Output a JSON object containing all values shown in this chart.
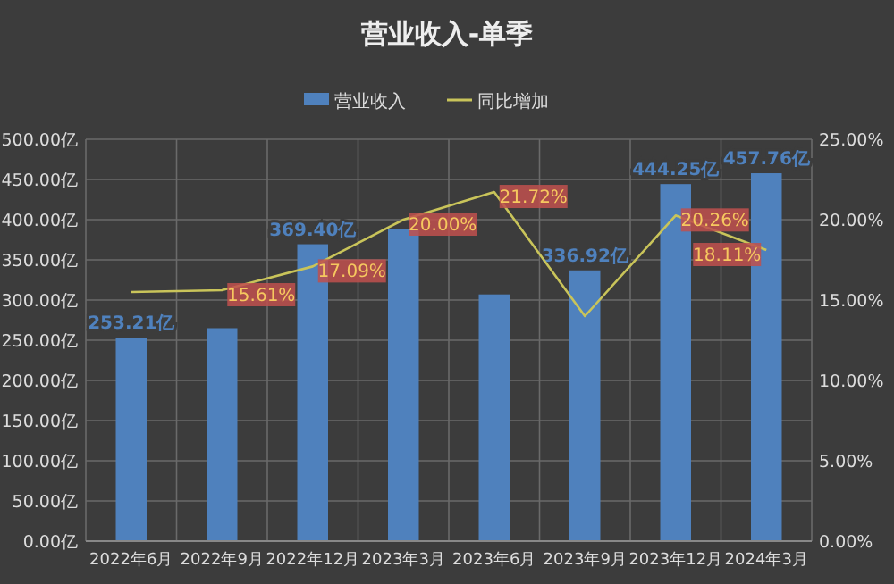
{
  "chart_data": {
    "type": "bar",
    "title": "营业收入-单季",
    "categories": [
      "2022年6月",
      "2022年9月",
      "2022年12月",
      "2023年3月",
      "2023年6月",
      "2023年9月",
      "2023年12月",
      "2024年3月"
    ],
    "series": [
      {
        "name": "营业收入",
        "color": "#4f81bd",
        "values": [
          253.21,
          265,
          369.4,
          388,
          307,
          336.92,
          444.25,
          457.76
        ],
        "value_labels": [
          "253.21亿",
          null,
          "369.40亿",
          null,
          null,
          "336.92亿",
          "444.25亿",
          "457.76亿"
        ]
      },
      {
        "name": "同比增加",
        "type": "line",
        "axis": "y2",
        "color": "#c9c45a",
        "values": [
          15.5,
          15.61,
          17.09,
          20,
          21.72,
          14,
          20.26,
          18.11
        ],
        "value_labels": [
          null,
          "15.61%",
          "17.09%",
          "20.00%",
          "21.72%",
          null,
          "20.26%",
          "18.11%"
        ]
      }
    ],
    "ylim": [
      0,
      500
    ],
    "yticks": [
      {
        "value": 0,
        "label": "0.00亿"
      },
      {
        "value": 50,
        "label": "50.00亿"
      },
      {
        "value": 100,
        "label": "100.00亿"
      },
      {
        "value": 150,
        "label": "150.00亿"
      },
      {
        "value": 200,
        "label": "200.00亿"
      },
      {
        "value": 250,
        "label": "250.00亿"
      },
      {
        "value": 300,
        "label": "300.00亿"
      },
      {
        "value": 350,
        "label": "350.00亿"
      },
      {
        "value": 400,
        "label": "400.00亿"
      },
      {
        "value": 450,
        "label": "450.00亿"
      },
      {
        "value": 500,
        "label": "500.00亿"
      }
    ],
    "y2lim": [
      0,
      25
    ],
    "y2ticks": [
      {
        "value": 0,
        "label": "0.00%"
      },
      {
        "value": 5,
        "label": "5.00%"
      },
      {
        "value": 10,
        "label": "10.00%"
      },
      {
        "value": 15,
        "label": "15.00%"
      },
      {
        "value": 20,
        "label": "20.00%"
      },
      {
        "value": 25,
        "label": "25.00%"
      }
    ],
    "grid": true,
    "legend": "top",
    "marker": "none"
  }
}
